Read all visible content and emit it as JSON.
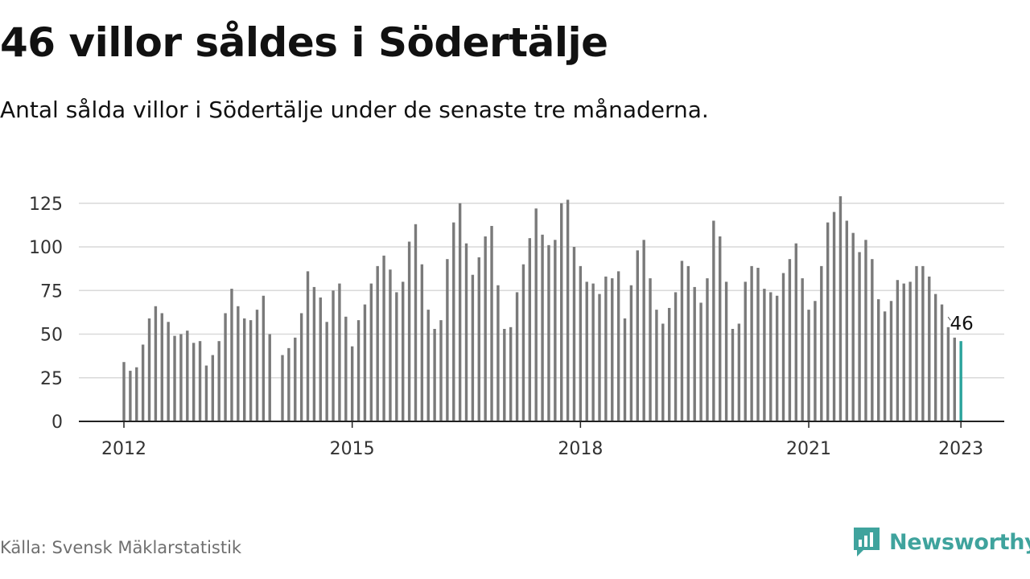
{
  "title": "46 villor såldes i Södertälje",
  "subtitle": "Antal sålda villor i Södertälje under de senaste tre månaderna.",
  "source": "Källa: Svensk Mäklarstatistik",
  "brand": {
    "name": "Newsworthy",
    "icon": "newsworthy-logo-icon",
    "color": "#3fa39d"
  },
  "chart_data": {
    "type": "bar",
    "title": "",
    "xlabel": "",
    "ylabel": "",
    "x_start": "2012-01",
    "x_end": "2023-01",
    "x_ticks": [
      "2012",
      "2015",
      "2018",
      "2021",
      "2023"
    ],
    "y_ticks": [
      0,
      25,
      50,
      75,
      100,
      125
    ],
    "ylim": [
      0,
      130
    ],
    "grid": true,
    "bar_color": "#7a7a7a",
    "highlight_color": "#2aa39c",
    "highlight_label": "46",
    "series": [
      {
        "values": [
          34,
          29,
          31,
          44,
          59,
          66,
          62,
          57,
          49,
          50,
          52,
          45,
          46,
          32,
          38,
          46,
          62,
          76,
          66,
          59,
          58,
          64,
          72,
          50,
          null,
          38,
          42,
          48,
          62,
          86,
          77,
          71,
          57,
          75,
          79,
          60,
          43,
          58,
          67,
          79,
          89,
          95,
          87,
          74,
          80,
          103,
          113,
          90,
          64,
          53,
          58,
          93,
          114,
          125,
          102,
          84,
          94,
          106,
          112,
          78,
          53,
          54,
          74,
          90,
          105,
          122,
          107,
          101,
          104,
          125,
          127,
          100,
          89,
          80,
          79,
          73,
          83,
          82,
          86,
          59,
          78,
          98,
          104,
          82,
          64,
          56,
          65,
          74,
          92,
          89,
          77,
          68,
          82,
          115,
          106,
          80,
          53,
          56,
          80,
          89,
          88,
          76,
          74,
          72,
          85,
          93,
          102,
          82,
          64,
          69,
          89,
          114,
          120,
          129,
          115,
          108,
          97,
          104,
          93,
          70,
          63,
          69,
          81,
          79,
          80,
          89,
          89,
          83,
          73,
          67,
          54,
          48,
          46
        ]
      }
    ]
  }
}
